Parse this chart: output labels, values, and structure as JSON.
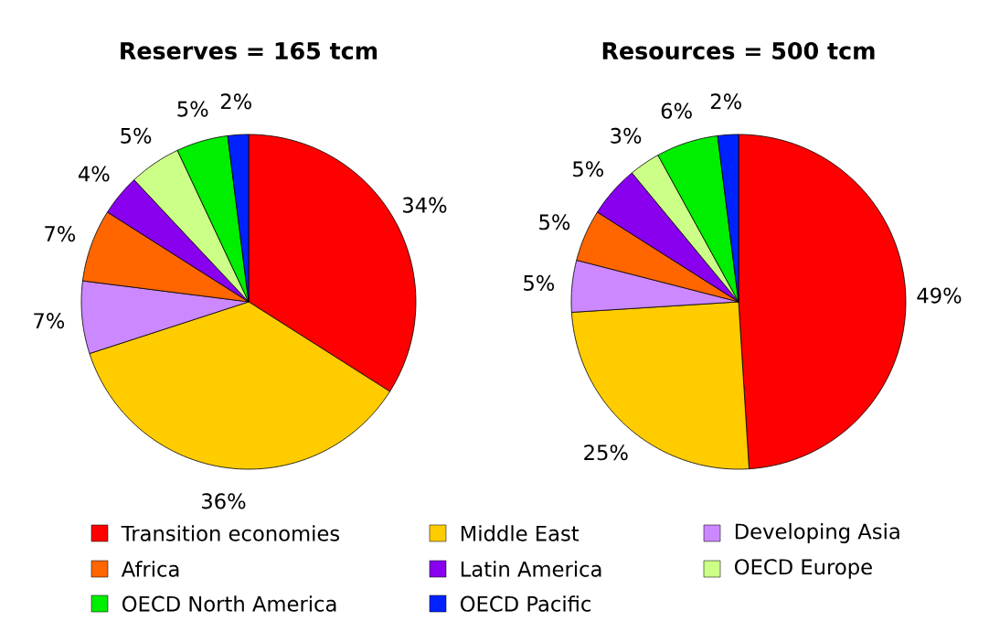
{
  "chart_data": [
    {
      "type": "pie",
      "title": "Reserves = 165 tcm",
      "legend": "bottom",
      "categories": [
        "Transition economies",
        "Middle East",
        "Developing Asia",
        "Africa",
        "Latin America",
        "OECD Europe",
        "OECD North America",
        "OECD Pacific"
      ],
      "values": [
        34,
        36,
        7,
        7,
        4,
        5,
        5,
        2
      ],
      "value_labels": [
        "34%",
        "36%",
        "7%",
        "7%",
        "4%",
        "5%",
        "5%",
        "2%"
      ],
      "colors": [
        "#ff0000",
        "#ffcc00",
        "#cc88ff",
        "#ff6600",
        "#8800ee",
        "#ccff88",
        "#00ee00",
        "#0022ff"
      ]
    },
    {
      "type": "pie",
      "title": "Resources = 500 tcm",
      "categories": [
        null,
        null,
        null,
        null,
        null,
        null,
        null,
        null
      ],
      "values": [
        49,
        25,
        5,
        5,
        5,
        3,
        6,
        2
      ],
      "value_labels": [
        "49%",
        "25%",
        "5%",
        "5%",
        "5%",
        "3%",
        "6%",
        "2%"
      ],
      "colors": [
        "#ff0000",
        "#ffcc00",
        "#cc88ff",
        "#ff6600",
        "#8800ee",
        "#ccff88",
        "#00ee00",
        "#0022ff"
      ]
    }
  ]
}
